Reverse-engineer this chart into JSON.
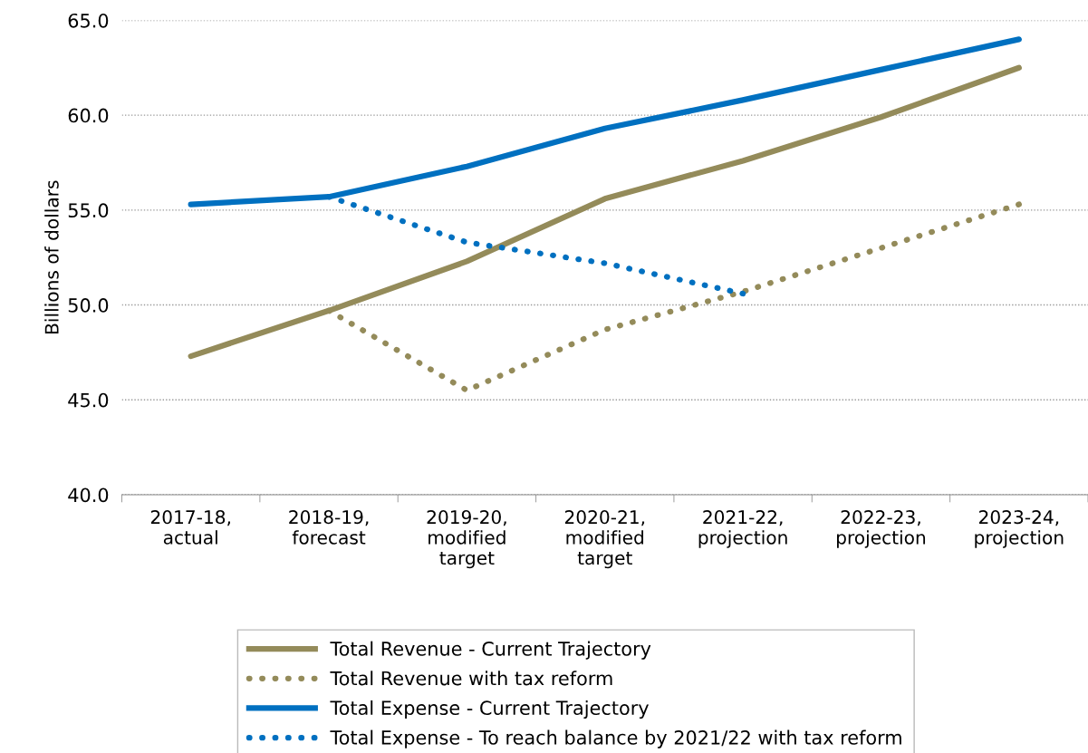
{
  "chart_data": {
    "type": "line",
    "ylabel": "Billions of dollars",
    "categories": [
      "2017-18,\nactual",
      "2018-19,\nforecast",
      "2019-20,\nmodified\ntarget",
      "2020-21,\nmodified\ntarget",
      "2021-22,\nprojection",
      "2022-23,\nprojection",
      "2023-24,\nprojection"
    ],
    "series": [
      {
        "name": "Total Revenue - Current Trajectory",
        "color": "#948b5a",
        "line_style": "solid",
        "values": [
          47.3,
          49.7,
          52.3,
          55.6,
          57.6,
          59.9,
          62.5
        ]
      },
      {
        "name": "Total Revenue with tax reform",
        "color": "#948b5a",
        "line_style": "dotted",
        "values": [
          null,
          49.7,
          45.5,
          48.7,
          50.7,
          53.0,
          55.3
        ]
      },
      {
        "name": "Total Expense - Current Trajectory",
        "color": "#0070c0",
        "line_style": "solid",
        "values": [
          55.3,
          55.7,
          57.3,
          59.3,
          60.8,
          62.4,
          64.0
        ]
      },
      {
        "name": "Total Expense - To reach balance by 2021/22 with tax reform",
        "color": "#0070c0",
        "line_style": "dotted",
        "values": [
          null,
          55.7,
          53.3,
          52.2,
          50.6,
          null,
          null
        ]
      }
    ],
    "ylim": [
      40,
      65
    ],
    "yticks": [
      {
        "value": 40,
        "label": "40.0"
      },
      {
        "value": 45,
        "label": "45.0"
      },
      {
        "value": 50,
        "label": "50.0"
      },
      {
        "value": 55,
        "label": "55.0"
      },
      {
        "value": 60,
        "label": "60.0"
      },
      {
        "value": 65,
        "label": "65.0"
      }
    ],
    "grid": "y",
    "legend": "bottom",
    "marker": "none"
  }
}
